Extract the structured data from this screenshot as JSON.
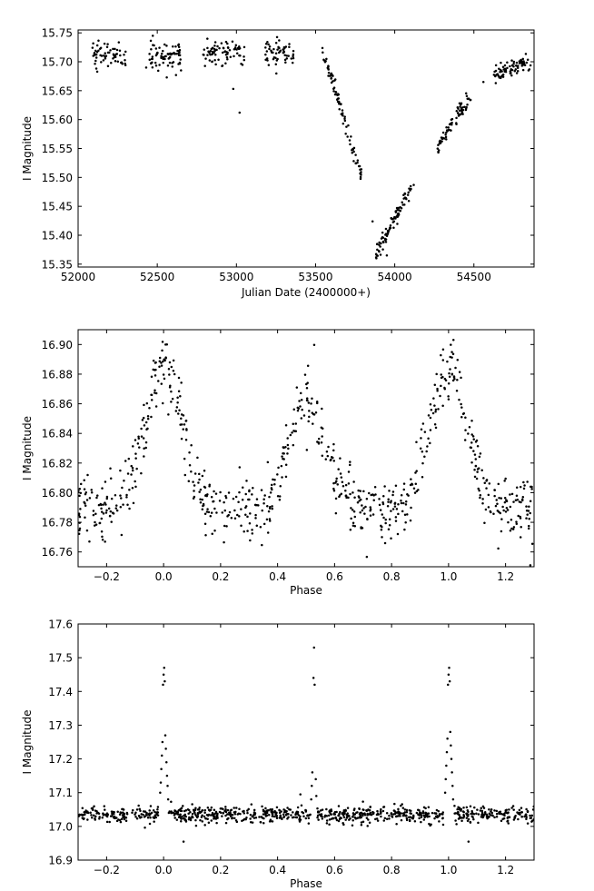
{
  "chart_data": [
    {
      "type": "scatter",
      "title": "",
      "xlabel": "Julian Date (2400000+)",
      "ylabel": "I Magnitude",
      "xlim": [
        52000,
        54880
      ],
      "ylim": [
        15.755,
        15.345
      ],
      "y_inverted": true,
      "grid": false,
      "xticks": [
        52000,
        52500,
        53000,
        53500,
        54000,
        54500
      ],
      "xtick_labels": [
        "52000",
        "52500",
        "53000",
        "53500",
        "54000",
        "54500"
      ],
      "yticks": [
        15.35,
        15.4,
        15.45,
        15.5,
        15.55,
        15.6,
        15.65,
        15.7,
        15.75
      ],
      "ytick_labels": [
        "15.35",
        "15.40",
        "15.45",
        "15.50",
        "15.55",
        "15.60",
        "15.65",
        "15.70",
        "15.75"
      ],
      "series": [
        {
          "segments": [
            {
              "x_range": [
                52090,
                52300
              ],
              "y_center": 15.713,
              "y_spread": 0.012,
              "n": 60
            },
            {
              "x_range": [
                52450,
                52650
              ],
              "y_center": 15.712,
              "y_spread": 0.01,
              "n": 75
            },
            {
              "x_range": [
                52790,
                53050
              ],
              "y_center": 15.716,
              "y_spread": 0.011,
              "n": 75
            },
            {
              "x_range": [
                53180,
                53360
              ],
              "y_center": 15.717,
              "y_spread": 0.011,
              "n": 55
            }
          ],
          "ramp_up": {
            "x_range": [
              53540,
              53790
            ],
            "y_start": 15.725,
            "y_end": 15.5,
            "n": 85
          },
          "peak": {
            "x_range": [
              53880,
              54110
            ],
            "y_start": 15.365,
            "y_end": 15.49,
            "n": 85
          },
          "decline": {
            "x_range": [
              54270,
              54480
            ],
            "y_start": 15.555,
            "y_end": 15.64,
            "n": 70
          },
          "tail": {
            "x_range": [
              54620,
              54860
            ],
            "y_start": 15.675,
            "y_end": 15.7,
            "n": 80
          },
          "extra_points": [
            [
              52560,
              15.673
            ],
            [
              52650,
              15.685
            ],
            [
              52980,
              15.653
            ],
            [
              53020,
              15.612
            ],
            [
              53860,
              15.424
            ],
            [
              53950,
              15.365
            ],
            [
              54120,
              15.487
            ],
            [
              54560,
              15.665
            ],
            [
              54800,
              15.7
            ],
            [
              52430,
              15.69
            ]
          ]
        }
      ]
    },
    {
      "type": "scatter",
      "title": "",
      "xlabel": "Phase",
      "ylabel": "I Magnitude",
      "xlim": [
        -0.3,
        1.3
      ],
      "ylim": [
        16.91,
        16.75
      ],
      "y_inverted": true,
      "grid": false,
      "xticks": [
        -0.2,
        0.0,
        0.2,
        0.4,
        0.6,
        0.8,
        1.0,
        1.2
      ],
      "xtick_labels": [
        "−0.2",
        "0.0",
        "0.2",
        "0.4",
        "0.6",
        "0.8",
        "1.0",
        "1.2"
      ],
      "yticks": [
        16.76,
        16.78,
        16.8,
        16.82,
        16.84,
        16.86,
        16.88,
        16.9
      ],
      "ytick_labels": [
        "16.76",
        "16.78",
        "16.80",
        "16.82",
        "16.84",
        "16.86",
        "16.88",
        "16.90"
      ],
      "series": [
        {
          "model": "ellipsoidal_variable",
          "maximum_mag": 16.79,
          "primary_minimum_mag": 16.885,
          "secondary_minimum_mag": 16.865,
          "scatter": 0.011,
          "n": 760
        }
      ]
    },
    {
      "type": "scatter",
      "title": "",
      "xlabel": "Phase",
      "ylabel": "I Magnitude",
      "xlim": [
        -0.3,
        1.3
      ],
      "ylim": [
        17.6,
        16.9
      ],
      "y_inverted": true,
      "grid": false,
      "xticks": [
        -0.2,
        0.0,
        0.2,
        0.4,
        0.6,
        0.8,
        1.0,
        1.2
      ],
      "xtick_labels": [
        "−0.2",
        "0.0",
        "0.2",
        "0.4",
        "0.6",
        "0.8",
        "1.0",
        "1.2"
      ],
      "yticks": [
        16.9,
        17.0,
        17.1,
        17.2,
        17.3,
        17.4,
        17.5,
        17.6
      ],
      "ytick_labels": [
        "16.9",
        "17.0",
        "17.1",
        "17.2",
        "17.3",
        "17.4",
        "17.5",
        "17.6"
      ],
      "series": [
        {
          "model": "detached_eclipsing",
          "baseline_mag": 17.035,
          "scatter": 0.012,
          "n": 900,
          "eclipse_points": [
            [
              -0.012,
              17.1
            ],
            [
              -0.01,
              17.13
            ],
            [
              -0.008,
              17.17
            ],
            [
              -0.006,
              17.21
            ],
            [
              -0.004,
              17.25
            ],
            [
              -0.002,
              17.42
            ],
            [
              0.0,
              17.45
            ],
            [
              0.002,
              17.47
            ],
            [
              0.004,
              17.43
            ],
            [
              0.006,
              17.27
            ],
            [
              0.008,
              17.23
            ],
            [
              0.01,
              17.19
            ],
            [
              0.012,
              17.15
            ],
            [
              0.014,
              17.12
            ],
            [
              0.016,
              17.08
            ],
            [
              0.988,
              17.1
            ],
            [
              0.99,
              17.14
            ],
            [
              0.992,
              17.18
            ],
            [
              0.994,
              17.22
            ],
            [
              0.996,
              17.26
            ],
            [
              0.998,
              17.42
            ],
            [
              1.0,
              17.45
            ],
            [
              1.002,
              17.47
            ],
            [
              1.004,
              17.43
            ],
            [
              1.006,
              17.28
            ],
            [
              1.008,
              17.24
            ],
            [
              1.01,
              17.2
            ],
            [
              1.012,
              17.16
            ],
            [
              1.014,
              17.12
            ],
            [
              1.016,
              17.08
            ],
            [
              0.518,
              17.08
            ],
            [
              0.52,
              17.12
            ],
            [
              0.522,
              17.16
            ],
            [
              0.526,
              17.44
            ],
            [
              0.528,
              17.53
            ],
            [
              0.53,
              17.42
            ],
            [
              0.534,
              17.14
            ],
            [
              0.536,
              17.09
            ]
          ],
          "outliers": [
            [
              0.07,
              16.955
            ],
            [
              1.07,
              16.955
            ],
            [
              0.48,
              17.095
            ]
          ]
        }
      ]
    }
  ]
}
